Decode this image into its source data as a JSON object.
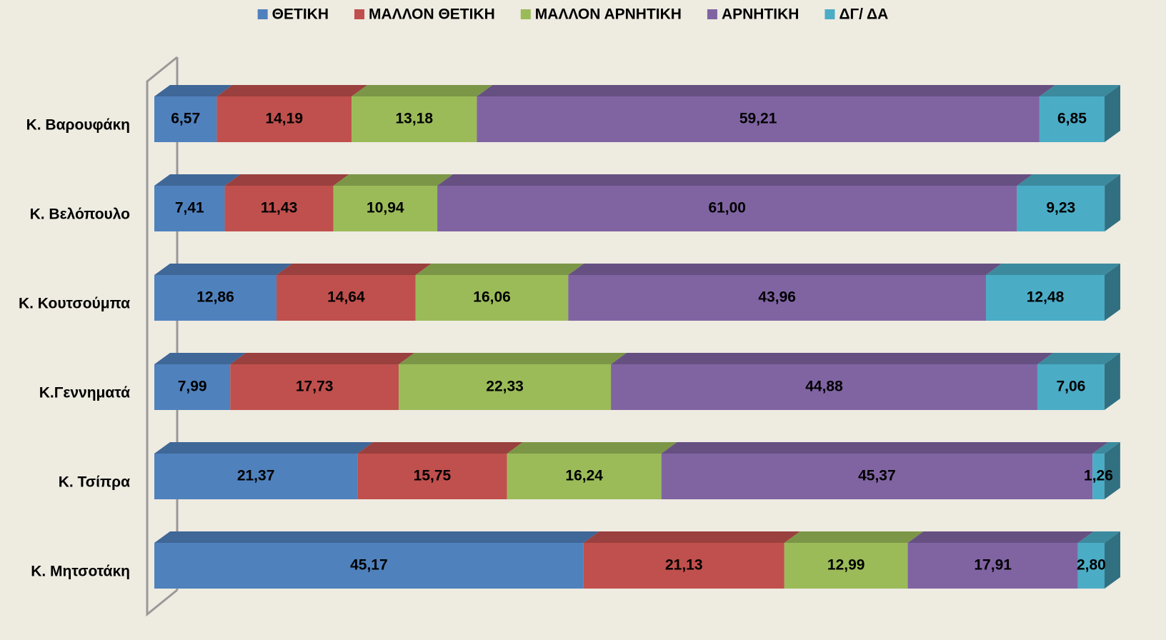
{
  "chart_data": {
    "type": "stacked-bar-horizontal-3d",
    "categories": [
      "Κ. Βαρουφάκη",
      "Κ. Βελόπουλο",
      "Κ.  Κουτσούμπα",
      "Κ.Γεννηματά",
      "Κ. Τσίπρα",
      "Κ. Μητσοτάκη"
    ],
    "xlim": [
      0,
      100
    ],
    "legend": "top",
    "series": [
      {
        "name": "ΘΕΤΙΚΗ",
        "color": "#4f81bd",
        "values": [
          6.57,
          7.41,
          12.86,
          7.99,
          21.37,
          45.17
        ],
        "value_labels": [
          "6,57",
          "7,41",
          "12,86",
          "7,99",
          "21,37",
          "45,17"
        ]
      },
      {
        "name": "ΜΑΛΛΟΝ ΘΕΤΙΚΗ",
        "color": "#c0504d",
        "values": [
          14.19,
          11.43,
          14.64,
          17.73,
          15.75,
          21.13
        ],
        "value_labels": [
          "14,19",
          "11,43",
          "14,64",
          "17,73",
          "15,75",
          "21,13"
        ]
      },
      {
        "name": "ΜΑΛΛΟΝ ΑΡΝΗΤΙΚΗ",
        "color": "#9bbb59",
        "values": [
          13.18,
          10.94,
          16.06,
          22.33,
          16.24,
          12.99
        ],
        "value_labels": [
          "13,18",
          "10,94",
          "16,06",
          "22,33",
          "16,24",
          "12,99"
        ]
      },
      {
        "name": "ΑΡΝΗΤΙΚΗ",
        "color": "#8064a2",
        "values": [
          59.21,
          61.0,
          43.96,
          44.88,
          45.37,
          17.91
        ],
        "value_labels": [
          "59,21",
          "61,00",
          "43,96",
          "44,88",
          "45,37",
          "17,91"
        ]
      },
      {
        "name": "ΔΓ/ ΔΑ",
        "color": "#4bacc6",
        "values": [
          6.85,
          9.23,
          12.48,
          7.06,
          1.26,
          2.8
        ],
        "value_labels": [
          "6,85",
          "9,23",
          "12,48",
          "7,06",
          "1,26",
          "2,80"
        ]
      }
    ]
  }
}
